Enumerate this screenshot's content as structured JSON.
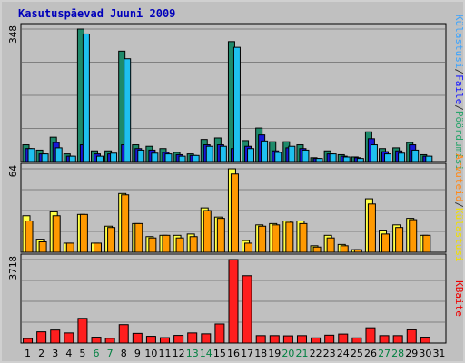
{
  "window": {
    "title": "Kasutuspäevad Juuni 2009"
  },
  "chart_data": [
    {
      "type": "bar",
      "panel": "top",
      "ymax_label": "348",
      "ylim": [
        0,
        348
      ],
      "right_label_parts": [
        {
          "text": "Külastusi",
          "color": "#3ba4ff"
        },
        {
          "text": "/",
          "color": "#333333"
        },
        {
          "text": "Faile",
          "color": "#1a1aff"
        },
        {
          "text": "/",
          "color": "#333333"
        },
        {
          "text": "Pöördumisi",
          "color": "#2aa56c"
        }
      ],
      "categories": [
        "1",
        "2",
        "3",
        "4",
        "5",
        "6",
        "7",
        "8",
        "9",
        "10",
        "11",
        "12",
        "13",
        "14",
        "15",
        "16",
        "17",
        "18",
        "19",
        "20",
        "21",
        "22",
        "23",
        "24",
        "25",
        "26",
        "27",
        "28",
        "29",
        "30",
        "31"
      ],
      "series": [
        {
          "name": "Pöördumisi",
          "color": "#1e8a6b",
          "values": [
            44,
            30,
            64,
            20,
            348,
            28,
            28,
            290,
            44,
            40,
            34,
            24,
            20,
            58,
            62,
            315,
            55,
            88,
            52,
            52,
            44,
            10,
            28,
            18,
            12,
            78,
            34,
            36,
            50,
            18,
            0
          ]
        },
        {
          "name": "Faile",
          "color": "#1818d8",
          "values": [
            34,
            20,
            50,
            14,
            44,
            20,
            20,
            44,
            34,
            30,
            24,
            18,
            16,
            44,
            44,
            34,
            40,
            70,
            28,
            36,
            34,
            8,
            20,
            14,
            10,
            60,
            26,
            28,
            44,
            14,
            0
          ]
        },
        {
          "name": "Külastusi",
          "color": "#1ec0f0",
          "values": [
            34,
            20,
            36,
            14,
            335,
            14,
            22,
            270,
            30,
            22,
            20,
            14,
            16,
            40,
            40,
            300,
            34,
            54,
            24,
            40,
            30,
            8,
            20,
            12,
            8,
            44,
            20,
            22,
            30,
            14,
            0
          ]
        }
      ]
    },
    {
      "type": "bar",
      "panel": "middle",
      "ymax_label": "64",
      "ylim": [
        0,
        64
      ],
      "right_label_parts": [
        {
          "text": "Arvuteid",
          "color": "#ff8a1a"
        },
        {
          "text": "/",
          "color": "#333333"
        },
        {
          "text": "Külastusi",
          "color": "#f2e000"
        }
      ],
      "categories": [
        "1",
        "2",
        "3",
        "4",
        "5",
        "6",
        "7",
        "8",
        "9",
        "10",
        "11",
        "12",
        "13",
        "14",
        "15",
        "16",
        "17",
        "18",
        "19",
        "20",
        "21",
        "22",
        "23",
        "24",
        "25",
        "26",
        "27",
        "28",
        "29",
        "30",
        "31"
      ],
      "series": [
        {
          "name": "Külastusi",
          "color": "#ffff44",
          "values": [
            28,
            10,
            31,
            7,
            29,
            7,
            20,
            45,
            22,
            12,
            13,
            13,
            14,
            34,
            27,
            64,
            9,
            21,
            22,
            24,
            24,
            5,
            13,
            6,
            2,
            41,
            17,
            21,
            26,
            13,
            0
          ]
        },
        {
          "name": "Arvuteid",
          "color": "#ff9900",
          "values": [
            24,
            8,
            28,
            7,
            29,
            7,
            19,
            44,
            22,
            11,
            13,
            11,
            12,
            32,
            26,
            60,
            7,
            20,
            21,
            23,
            22,
            4,
            11,
            5,
            2,
            37,
            14,
            19,
            25,
            13,
            0
          ]
        }
      ]
    },
    {
      "type": "bar",
      "panel": "bottom",
      "ymax_label": "3718",
      "ylim": [
        0,
        3718
      ],
      "right_label_parts": [
        {
          "text": "KBaite",
          "color": "#ee0000"
        }
      ],
      "categories": [
        "1",
        "2",
        "3",
        "4",
        "5",
        "6",
        "7",
        "8",
        "9",
        "10",
        "11",
        "12",
        "13",
        "14",
        "15",
        "16",
        "17",
        "18",
        "19",
        "20",
        "21",
        "22",
        "23",
        "24",
        "25",
        "26",
        "27",
        "28",
        "29",
        "30",
        "31"
      ],
      "series": [
        {
          "name": "KBaite",
          "color": "#ff1e1e",
          "values": [
            200,
            500,
            580,
            450,
            1100,
            260,
            210,
            820,
            430,
            300,
            240,
            340,
            450,
            410,
            850,
            3718,
            3000,
            330,
            330,
            320,
            330,
            230,
            350,
            400,
            230,
            680,
            330,
            330,
            590,
            260,
            0
          ]
        }
      ]
    }
  ],
  "x_axis": {
    "labels": [
      "1",
      "2",
      "3",
      "4",
      "5",
      "6",
      "7",
      "8",
      "9",
      "10",
      "11",
      "12",
      "13",
      "14",
      "15",
      "16",
      "17",
      "18",
      "19",
      "20",
      "21",
      "22",
      "23",
      "24",
      "25",
      "26",
      "27",
      "28",
      "29",
      "30",
      "31"
    ],
    "weekend_days": [
      6,
      7,
      13,
      14,
      20,
      21,
      27,
      28
    ],
    "weekday_color": "#000000",
    "weekend_color": "#008040"
  }
}
